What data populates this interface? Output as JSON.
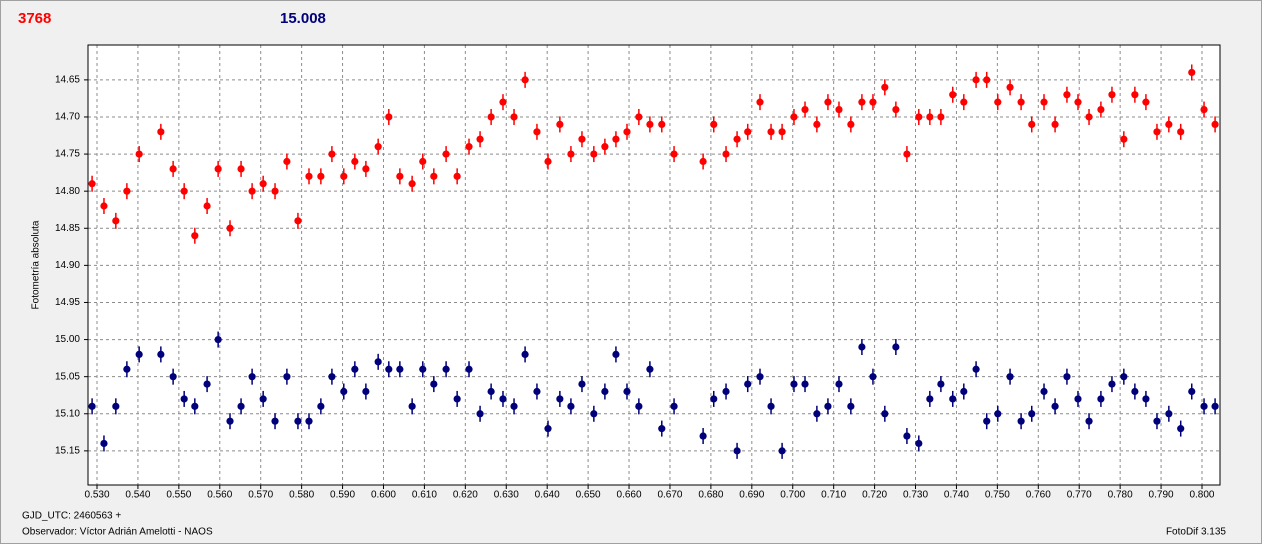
{
  "chart_data": {
    "type": "scatter",
    "ylabel": "Fotometría absoluta",
    "xlabel": "GJD_UTC: 2460563 +",
    "annotations": [
      "Observador: Víctor Adrián Amelotti - NAOS",
      "FotoDif 3.135"
    ],
    "xlim": [
      0.5278,
      0.8044
    ],
    "ylim": [
      14.603,
      15.196
    ],
    "y_inverted": true,
    "grid": true,
    "xticks": [
      {
        "value": 0.53,
        "label": "0.530"
      },
      {
        "value": 0.54,
        "label": "0.540"
      },
      {
        "value": 0.55,
        "label": "0.550"
      },
      {
        "value": 0.56,
        "label": "0.560"
      },
      {
        "value": 0.57,
        "label": "0.570"
      },
      {
        "value": 0.58,
        "label": "0.580"
      },
      {
        "value": 0.59,
        "label": "0.590"
      },
      {
        "value": 0.6,
        "label": "0.600"
      },
      {
        "value": 0.61,
        "label": "0.610"
      },
      {
        "value": 0.62,
        "label": "0.620"
      },
      {
        "value": 0.63,
        "label": "0.630"
      },
      {
        "value": 0.64,
        "label": "0.640"
      },
      {
        "value": 0.65,
        "label": "0.650"
      },
      {
        "value": 0.66,
        "label": "0.660"
      },
      {
        "value": 0.67,
        "label": "0.670"
      },
      {
        "value": 0.68,
        "label": "0.680"
      },
      {
        "value": 0.69,
        "label": "0.690"
      },
      {
        "value": 0.7,
        "label": "0.700"
      },
      {
        "value": 0.71,
        "label": "0.710"
      },
      {
        "value": 0.72,
        "label": "0.720"
      },
      {
        "value": 0.73,
        "label": "0.730"
      },
      {
        "value": 0.74,
        "label": "0.740"
      },
      {
        "value": 0.75,
        "label": "0.750"
      },
      {
        "value": 0.76,
        "label": "0.760"
      },
      {
        "value": 0.77,
        "label": "0.770"
      },
      {
        "value": 0.78,
        "label": "0.780"
      },
      {
        "value": 0.79,
        "label": "0.790"
      },
      {
        "value": 0.8,
        "label": "0.800"
      }
    ],
    "yticks": [
      14.65,
      {
        "value": 14.7,
        "label": "14.70"
      },
      14.75,
      {
        "value": 14.8,
        "label": "14.80"
      },
      14.85,
      {
        "value": 14.9,
        "label": "14.90"
      },
      14.95,
      {
        "value": 15.0,
        "label": "15.00"
      },
      15.05,
      {
        "value": 15.1,
        "label": "15.10"
      },
      15.15
    ],
    "x": [
      0.5288,
      0.5317,
      0.5346,
      0.5373,
      0.5403,
      0.5456,
      0.5486,
      0.5513,
      0.5539,
      0.5569,
      0.5596,
      0.5625,
      0.5652,
      0.5679,
      0.5706,
      0.5735,
      0.5764,
      0.5791,
      0.5818,
      0.5847,
      0.5874,
      0.5903,
      0.593,
      0.5957,
      0.5987,
      0.6013,
      0.604,
      0.607,
      0.6096,
      0.6123,
      0.6153,
      0.618,
      0.6209,
      0.6236,
      0.6263,
      0.6292,
      0.6319,
      0.6346,
      0.6375,
      0.6402,
      0.6431,
      0.6458,
      0.6485,
      0.6514,
      0.6541,
      0.6568,
      0.6595,
      0.6624,
      0.6651,
      0.668,
      0.671,
      0.6781,
      0.6807,
      0.6837,
      0.6864,
      0.689,
      0.692,
      0.6947,
      0.6974,
      0.7003,
      0.703,
      0.7059,
      0.7086,
      0.7113,
      0.7142,
      0.7169,
      0.7196,
      0.7225,
      0.7252,
      0.7279,
      0.7308,
      0.7335,
      0.7362,
      0.7391,
      0.7418,
      0.7448,
      0.7474,
      0.7501,
      0.7531,
      0.7558,
      0.7584,
      0.7614,
      0.7641,
      0.767,
      0.7697,
      0.7724,
      0.7753,
      0.778,
      0.7809,
      0.7836,
      0.7863,
      0.789,
      0.7919,
      0.7948,
      0.7975,
      0.8005,
      0.8032
    ],
    "series": [
      {
        "name": "3768",
        "color": "#ff0000",
        "values": [
          14.79,
          14.82,
          14.84,
          14.8,
          14.75,
          14.72,
          14.77,
          14.8,
          14.86,
          14.82,
          14.77,
          14.85,
          14.77,
          14.8,
          14.79,
          14.8,
          14.76,
          14.84,
          14.78,
          14.78,
          14.75,
          14.78,
          14.76,
          14.77,
          14.74,
          14.7,
          14.78,
          14.79,
          14.76,
          14.78,
          14.75,
          14.78,
          14.74,
          14.73,
          14.7,
          14.68,
          14.7,
          14.65,
          14.72,
          14.76,
          14.71,
          14.75,
          14.73,
          14.75,
          14.74,
          14.73,
          14.72,
          14.7,
          14.71,
          14.71,
          14.75,
          14.76,
          14.71,
          14.75,
          14.73,
          14.72,
          14.68,
          14.72,
          14.72,
          14.7,
          14.69,
          14.71,
          14.68,
          14.69,
          14.71,
          14.68,
          14.68,
          14.66,
          14.69,
          14.75,
          14.7,
          14.7,
          14.7,
          14.67,
          14.68,
          14.65,
          14.65,
          14.68,
          14.66,
          14.68,
          14.71,
          14.68,
          14.71,
          14.67,
          14.68,
          14.7,
          14.69,
          14.67,
          14.73,
          14.67,
          14.68,
          14.72,
          14.71,
          14.72,
          14.64,
          14.69,
          14.71
        ]
      },
      {
        "name": "15.008",
        "color": "#00007a",
        "values": [
          15.09,
          15.14,
          15.09,
          15.04,
          15.02,
          15.02,
          15.05,
          15.08,
          15.09,
          15.06,
          15.0,
          15.11,
          15.09,
          15.05,
          15.08,
          15.11,
          15.05,
          15.11,
          15.11,
          15.09,
          15.05,
          15.07,
          15.04,
          15.07,
          15.03,
          15.04,
          15.04,
          15.09,
          15.04,
          15.06,
          15.04,
          15.08,
          15.04,
          15.1,
          15.07,
          15.08,
          15.09,
          15.02,
          15.07,
          15.12,
          15.08,
          15.09,
          15.06,
          15.1,
          15.07,
          15.02,
          15.07,
          15.09,
          15.04,
          15.12,
          15.09,
          15.13,
          15.08,
          15.07,
          15.15,
          15.06,
          15.05,
          15.09,
          15.15,
          15.06,
          15.06,
          15.1,
          15.09,
          15.06,
          15.09,
          15.01,
          15.05,
          15.1,
          15.01,
          15.13,
          15.14,
          15.08,
          15.06,
          15.08,
          15.07,
          15.04,
          15.11,
          15.1,
          15.05,
          15.11,
          15.1,
          15.07,
          15.09,
          15.05,
          15.08,
          15.11,
          15.08,
          15.06,
          15.05,
          15.07,
          15.08,
          15.11,
          15.1,
          15.12,
          15.07,
          15.09,
          15.09
        ]
      }
    ]
  }
}
